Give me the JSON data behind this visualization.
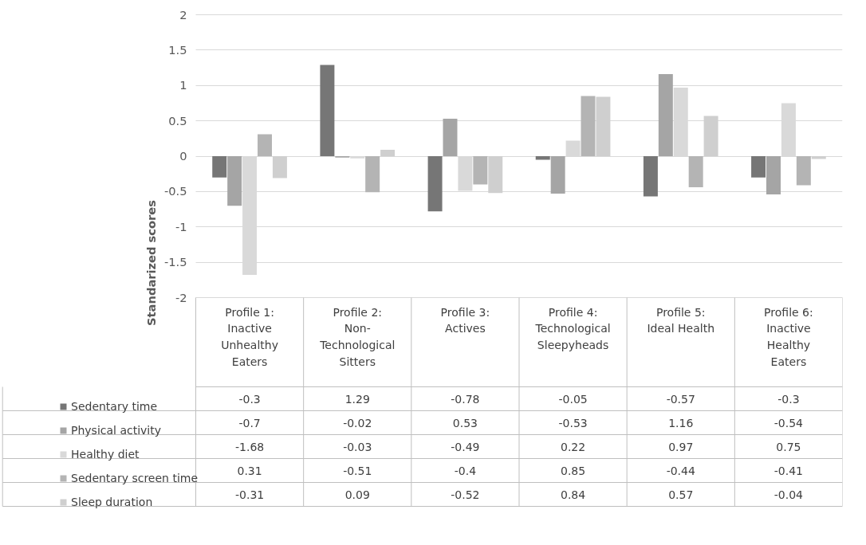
{
  "chart_data": {
    "type": "bar",
    "ylabel": "Standarized scores",
    "categories": [
      "Profile 1: Inactive Unhealthy Eaters",
      "Profile 2: Non-Technological Sitters",
      "Profile 3: Actives",
      "Profile 4: Technological Sleepyheads",
      "Profile 5: Ideal Health",
      "Profile 6: Inactive Healthy Eaters"
    ],
    "series": [
      {
        "name": "Sedentary time",
        "color": "#767676",
        "values": [
          -0.3,
          1.29,
          -0.78,
          -0.05,
          -0.57,
          -0.3
        ]
      },
      {
        "name": "Physical activity",
        "color": "#a5a5a5",
        "values": [
          -0.7,
          -0.02,
          0.53,
          -0.53,
          1.16,
          -0.54
        ]
      },
      {
        "name": "Healthy diet",
        "color": "#d9d9d9",
        "values": [
          -1.68,
          -0.03,
          -0.49,
          0.22,
          0.97,
          0.75
        ]
      },
      {
        "name": "Sedentary screen time",
        "color": "#b4b4b4",
        "values": [
          0.31,
          -0.51,
          -0.4,
          0.85,
          -0.44,
          -0.41
        ]
      },
      {
        "name": "Sleep duration",
        "color": "#cfcfcf",
        "values": [
          -0.31,
          0.09,
          -0.52,
          0.84,
          0.57,
          -0.04
        ]
      }
    ],
    "ylim": [
      -2,
      2
    ],
    "yticks": [
      -2,
      -1.5,
      -1,
      -0.5,
      0,
      0.5,
      1,
      1.5,
      2
    ],
    "grid": "y",
    "legend": "bottom",
    "data_labels": true
  }
}
